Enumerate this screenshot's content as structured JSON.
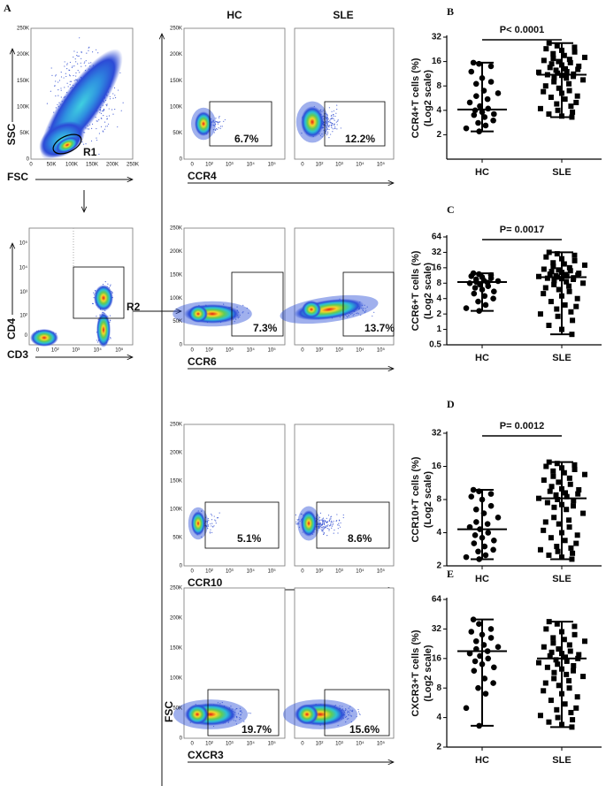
{
  "flow": {
    "panel": "A",
    "column_headers": [
      "HC",
      "SLE"
    ],
    "linear_ticks": [
      "0",
      "50K",
      "100K",
      "150K",
      "200K",
      "250K"
    ],
    "log_ticks": [
      "0",
      "10²",
      "10³",
      "10⁴",
      "10⁵"
    ],
    "gating": [
      {
        "x_label": "FSC",
        "y_label": "SSC",
        "gate": "R1"
      },
      {
        "x_label": "CD3",
        "y_label": "CD4",
        "gate": "R2"
      }
    ],
    "rows": [
      {
        "x_label": "CCR4",
        "percents": [
          "6.7%",
          "12.2%"
        ]
      },
      {
        "x_label": "CCR6",
        "percents": [
          "7.3%",
          "13.7%"
        ]
      },
      {
        "x_label": "CCR10",
        "percents": [
          "5.1%",
          "8.6%"
        ]
      },
      {
        "x_label": "CXCR3",
        "y_label": "FSC",
        "percents": [
          "19.7%",
          "15.6%"
        ]
      }
    ]
  },
  "chart_data": [
    {
      "type": "dotplot",
      "panel": "B",
      "y_label": [
        "CCR4+T cells (%)",
        "(Log2 scale)"
      ],
      "annotation": "P< 0.0001",
      "log_base": 2,
      "color": "#000000",
      "markers": [
        "circle",
        "square"
      ],
      "categories": [
        "HC",
        "SLE"
      ],
      "values": [
        [
          15.5,
          15,
          14,
          12,
          10,
          9,
          8.5,
          7,
          6.5,
          6,
          5.5,
          5,
          4.5,
          4.2,
          4,
          3.8,
          3.6,
          3.5,
          3.3,
          3,
          2.8,
          2.6,
          2.4,
          2.2
        ],
        [
          27,
          25,
          24,
          23,
          22,
          21,
          20,
          19,
          18,
          17.5,
          17,
          16.5,
          16,
          15.5,
          15,
          14.5,
          14,
          13.5,
          13,
          12.8,
          12.5,
          12,
          11.8,
          11.5,
          11.2,
          11,
          10.8,
          10.5,
          10.2,
          10,
          9.5,
          9,
          8.5,
          8,
          7.5,
          7,
          6.8,
          6.5,
          6,
          5.8,
          5.5,
          5,
          4.8,
          4.5,
          4.2,
          4,
          3.8,
          3.6,
          3.4,
          3.3
        ]
      ],
      "centers": [
        4.1,
        11
      ],
      "whiskers": [
        [
          2.2,
          15.5
        ],
        [
          3.3,
          27
        ]
      ],
      "ylim": [
        1,
        32
      ],
      "yticks": [
        2,
        4,
        8,
        16,
        32
      ]
    },
    {
      "type": "dotplot",
      "panel": "C",
      "y_label": [
        "CCR6+T cells (%)",
        "(Log2 scale)"
      ],
      "annotation": "P= 0.0017",
      "log_base": 2,
      "color": "#000000",
      "markers": [
        "circle",
        "square"
      ],
      "categories": [
        "HC",
        "SLE"
      ],
      "values": [
        [
          12.5,
          12,
          11.5,
          11,
          10.5,
          10,
          9.5,
          9,
          8.8,
          8.5,
          8.2,
          8,
          7.5,
          7,
          6.5,
          6,
          5.5,
          5,
          4.5,
          4,
          3.5,
          3,
          2.6,
          2.3
        ],
        [
          32,
          30,
          28,
          26,
          24,
          22,
          20,
          19,
          18,
          17,
          16,
          15,
          14.5,
          14,
          13.5,
          13,
          12.5,
          12,
          11.8,
          11.5,
          11.2,
          11,
          10.8,
          10.5,
          10.2,
          10,
          9.8,
          9.5,
          9,
          8.5,
          8,
          7.5,
          7,
          6.5,
          6,
          5.5,
          5,
          4.5,
          4,
          3.5,
          3,
          2.8,
          2.5,
          2.2,
          2,
          1.8,
          1.5,
          1.2,
          1,
          0.8
        ]
      ],
      "centers": [
        8.4,
        10.5
      ],
      "whiskers": [
        [
          2.3,
          12.5
        ],
        [
          0.8,
          32
        ]
      ],
      "ylim": [
        0.5,
        64
      ],
      "yticks": [
        0.5,
        1,
        2,
        4,
        8,
        16,
        32,
        64
      ]
    },
    {
      "type": "dotplot",
      "panel": "D",
      "y_label": [
        "CCR10+T cells (%)",
        "(Log2 scale)"
      ],
      "annotation": "P= 0.0012",
      "log_base": 2,
      "color": "#000000",
      "markers": [
        "circle",
        "square"
      ],
      "categories": [
        "HC",
        "SLE"
      ],
      "values": [
        [
          9.8,
          9.5,
          9,
          8.5,
          8,
          7,
          6.5,
          6,
          5.5,
          5,
          4.8,
          4.5,
          4.3,
          4,
          3.8,
          3.6,
          3.4,
          3.2,
          3,
          2.8,
          2.7,
          2.5,
          2.4,
          2.3
        ],
        [
          17.5,
          17,
          16.5,
          16,
          15.5,
          15,
          14.5,
          14,
          13.5,
          13,
          12.5,
          12,
          11.5,
          11,
          10.5,
          10,
          9.8,
          9.5,
          9.2,
          9,
          8.8,
          8.5,
          8.2,
          8,
          7.8,
          7.5,
          7.2,
          7,
          6.8,
          6.5,
          6,
          5.5,
          5.2,
          5,
          4.8,
          4.5,
          4.2,
          4,
          3.8,
          3.6,
          3.4,
          3.2,
          3,
          2.9,
          2.8,
          2.7,
          2.6,
          2.5,
          2.4,
          2.3
        ]
      ],
      "centers": [
        4.3,
        8.2
      ],
      "whiskers": [
        [
          2.3,
          9.8
        ],
        [
          2.3,
          17.5
        ]
      ],
      "ylim": [
        2,
        32
      ],
      "yticks": [
        2,
        4,
        8,
        16,
        32
      ]
    },
    {
      "type": "dotplot",
      "panel": "E",
      "y_label": [
        "CXCR3+T cells (%)",
        "(Log2 scale)"
      ],
      "log_base": 2,
      "color": "#000000",
      "markers": [
        "circle",
        "square"
      ],
      "categories": [
        "HC",
        "SLE"
      ],
      "values": [
        [
          40,
          36,
          32,
          30,
          28,
          26,
          24,
          22,
          21,
          20,
          19,
          18,
          17,
          16,
          15,
          14,
          13,
          12,
          10,
          9,
          8,
          7,
          5,
          3.3
        ],
        [
          38,
          36,
          34,
          32,
          30,
          28,
          26,
          25,
          24,
          23,
          22,
          21,
          20,
          19,
          18.5,
          18,
          17.5,
          17,
          16.5,
          16,
          15.5,
          15,
          14.5,
          14,
          13.5,
          13,
          12.5,
          12,
          11.5,
          11,
          10.5,
          10,
          9.5,
          9,
          8.5,
          8,
          7.5,
          7,
          6.5,
          6,
          5.5,
          5,
          4.8,
          4.5,
          4.2,
          4,
          3.8,
          3.6,
          3.4,
          3.2
        ]
      ],
      "centers": [
        19,
        16
      ],
      "whiskers": [
        [
          3.3,
          40
        ],
        [
          3.2,
          38
        ]
      ],
      "ylim": [
        2,
        64
      ],
      "yticks": [
        2,
        4,
        8,
        16,
        32,
        64
      ]
    }
  ]
}
